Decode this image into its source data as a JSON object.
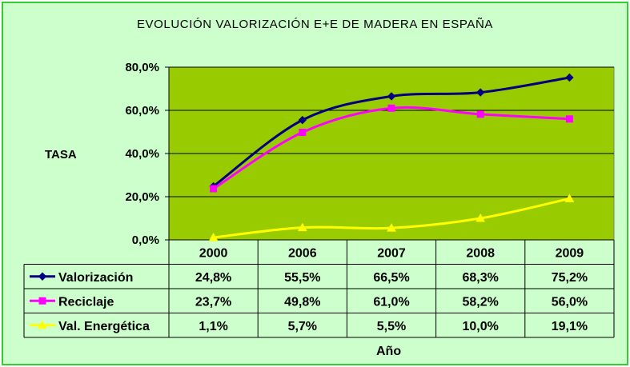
{
  "chart_data": {
    "type": "line",
    "title": "EVOLUCIÓN VALORIZACIÓN E+E DE MADERA EN ESPAÑA",
    "ylabel": "TASA",
    "xlabel": "Año",
    "categories": [
      "2000",
      "2006",
      "2007",
      "2008",
      "2009"
    ],
    "ylim": [
      0,
      80
    ],
    "yticks": [
      0,
      20,
      40,
      60,
      80
    ],
    "ytick_labels": [
      "0,0%",
      "20,0%",
      "40,0%",
      "60,0%",
      "80,0%"
    ],
    "grid": true,
    "series": [
      {
        "name": "Valorización",
        "values": [
          24.8,
          55.5,
          66.5,
          68.3,
          75.2
        ],
        "labels": [
          "24,8%",
          "55,5%",
          "66,5%",
          "68,3%",
          "75,2%"
        ],
        "color": "#000080",
        "marker": "diamond"
      },
      {
        "name": "Reciclaje",
        "values": [
          23.7,
          49.8,
          61.0,
          58.2,
          56.0
        ],
        "labels": [
          "23,7%",
          "49,8%",
          "61,0%",
          "58,2%",
          "56,0%"
        ],
        "color": "#ff00ff",
        "marker": "square"
      },
      {
        "name": "Val. Energética",
        "values": [
          1.1,
          5.7,
          5.5,
          10.0,
          19.1
        ],
        "labels": [
          "1,1%",
          "5,7%",
          "5,5%",
          "10,0%",
          "19,1%"
        ],
        "color": "#ffff00",
        "marker": "triangle"
      }
    ]
  },
  "colors": {
    "plot_background": "#99cc00",
    "outer_background": "#ccffcc",
    "border": "#33cc33"
  }
}
